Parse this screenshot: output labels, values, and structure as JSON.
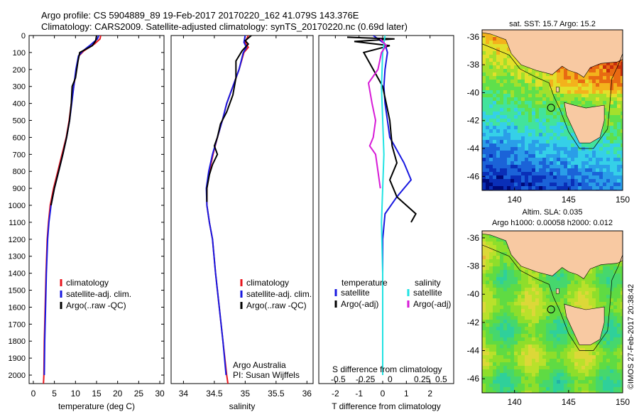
{
  "header": {
    "line1": "Argo profile: CS 5904889_89 19-Feb-2017 20170220_162 41.079S 143.376E",
    "line2": "Climatology: CARS2009. Satellite-adjusted climatology: synTS_20170220.nc (0.69d later)"
  },
  "colors": {
    "climatology": "#e8141c",
    "satellite": "#1818e0",
    "argo": "#000000",
    "sal_satellite": "#21e3e3",
    "sal_argo": "#d71bd7"
  },
  "chart_data": [
    {
      "type": "line",
      "xlabel": "temperature (deg C)",
      "xlim": [
        -1,
        31
      ],
      "ylim": [
        0,
        2050
      ],
      "y_reversed": true,
      "xticks": [
        0,
        5,
        10,
        15,
        20,
        25,
        30
      ],
      "yticks": [
        0,
        100,
        200,
        300,
        400,
        500,
        600,
        700,
        800,
        900,
        1000,
        1100,
        1200,
        1300,
        1400,
        1500,
        1600,
        1700,
        1800,
        1900,
        2000
      ],
      "legend": [
        "climatology",
        "satellite-adj. clim.",
        "Argo(..raw -QC)"
      ],
      "series": [
        {
          "name": "climatology",
          "color": "#e8141c",
          "points": [
            [
              16.0,
              0
            ],
            [
              15.8,
              20
            ],
            [
              14.5,
              50
            ],
            [
              12.0,
              90
            ],
            [
              10.8,
              120
            ],
            [
              10.2,
              200
            ],
            [
              9.6,
              300
            ],
            [
              9.0,
              400
            ],
            [
              8.5,
              500
            ],
            [
              7.8,
              600
            ],
            [
              6.8,
              700
            ],
            [
              5.8,
              800
            ],
            [
              4.8,
              900
            ],
            [
              4.0,
              1000
            ],
            [
              3.6,
              1100
            ],
            [
              3.3,
              1200
            ],
            [
              3.0,
              1400
            ],
            [
              2.8,
              1600
            ],
            [
              2.6,
              1800
            ],
            [
              2.5,
              2000
            ],
            [
              2.4,
              2050
            ]
          ]
        },
        {
          "name": "satellite-adj. clim.",
          "color": "#1818e0",
          "points": [
            [
              15.5,
              0
            ],
            [
              15.2,
              20
            ],
            [
              13.8,
              50
            ],
            [
              11.8,
              90
            ],
            [
              10.7,
              120
            ],
            [
              10.1,
              200
            ],
            [
              9.6,
              300
            ],
            [
              9.1,
              400
            ],
            [
              8.6,
              500
            ],
            [
              7.9,
              600
            ],
            [
              7.0,
              700
            ],
            [
              6.0,
              800
            ],
            [
              5.0,
              900
            ],
            [
              4.2,
              1000
            ],
            [
              3.7,
              1100
            ],
            [
              3.4,
              1200
            ],
            [
              3.1,
              1400
            ],
            [
              2.9,
              1600
            ],
            [
              2.7,
              1800
            ],
            [
              2.6,
              2000
            ]
          ]
        },
        {
          "name": "Argo(..raw -QC)",
          "color": "#000000",
          "points": [
            [
              15.0,
              0
            ],
            [
              14.8,
              30
            ],
            [
              14.0,
              60
            ],
            [
              12.5,
              80
            ],
            [
              11.0,
              100
            ],
            [
              10.6,
              150
            ],
            [
              10.0,
              250
            ],
            [
              9.2,
              300
            ],
            [
              9.0,
              400
            ],
            [
              8.6,
              500
            ],
            [
              7.9,
              600
            ],
            [
              7.0,
              700
            ],
            [
              6.0,
              800
            ],
            [
              5.0,
              900
            ],
            [
              4.2,
              1000
            ]
          ]
        }
      ]
    },
    {
      "type": "line",
      "xlabel": "salinity",
      "xlim": [
        33.8,
        36.1
      ],
      "ylim": [
        0,
        2050
      ],
      "y_reversed": true,
      "xticks": [
        34,
        34.5,
        35,
        35.5,
        36
      ],
      "legend": [
        "climatology",
        "satellite-adj. clim.",
        "Argo(..raw -QC)"
      ],
      "annotation": [
        "Argo Australia",
        "PI: Susan Wijffels"
      ],
      "series": [
        {
          "name": "climatology",
          "color": "#e8141c",
          "points": [
            [
              35.05,
              0
            ],
            [
              35.0,
              40
            ],
            [
              35.05,
              70
            ],
            [
              34.98,
              100
            ],
            [
              34.9,
              200
            ],
            [
              34.8,
              300
            ],
            [
              34.7,
              400
            ],
            [
              34.63,
              500
            ],
            [
              34.55,
              600
            ],
            [
              34.48,
              700
            ],
            [
              34.42,
              800
            ],
            [
              34.38,
              900
            ],
            [
              34.38,
              1000
            ],
            [
              34.42,
              1100
            ],
            [
              34.47,
              1200
            ],
            [
              34.52,
              1400
            ],
            [
              34.58,
              1600
            ],
            [
              34.64,
              1800
            ],
            [
              34.7,
              2000
            ],
            [
              34.72,
              2050
            ]
          ]
        },
        {
          "name": "satellite-adj. clim.",
          "color": "#1818e0",
          "points": [
            [
              35.0,
              0
            ],
            [
              34.98,
              40
            ],
            [
              35.02,
              70
            ],
            [
              34.97,
              100
            ],
            [
              34.9,
              200
            ],
            [
              34.8,
              300
            ],
            [
              34.7,
              400
            ],
            [
              34.63,
              500
            ],
            [
              34.55,
              600
            ],
            [
              34.47,
              700
            ],
            [
              34.41,
              800
            ],
            [
              34.37,
              900
            ],
            [
              34.38,
              1000
            ],
            [
              34.42,
              1100
            ],
            [
              34.47,
              1200
            ],
            [
              34.52,
              1400
            ],
            [
              34.58,
              1600
            ],
            [
              34.64,
              1800
            ],
            [
              34.69,
              2000
            ]
          ]
        },
        {
          "name": "Argo(..raw -QC)",
          "color": "#000000",
          "points": [
            [
              35.1,
              0
            ],
            [
              35.0,
              30
            ],
            [
              35.05,
              50
            ],
            [
              34.95,
              90
            ],
            [
              34.85,
              150
            ],
            [
              34.85,
              250
            ],
            [
              34.8,
              350
            ],
            [
              34.7,
              450
            ],
            [
              34.6,
              520
            ],
            [
              34.55,
              600
            ],
            [
              34.5,
              650
            ],
            [
              34.55,
              700
            ],
            [
              34.47,
              760
            ],
            [
              34.42,
              820
            ],
            [
              34.38,
              900
            ],
            [
              34.38,
              980
            ]
          ]
        }
      ]
    },
    {
      "type": "line",
      "xlabel": "T difference from climatology",
      "xlabel2": "S difference from climatology",
      "xlim": [
        -2.7,
        3.0
      ],
      "ylim": [
        0,
        2050
      ],
      "y_reversed": true,
      "xticks": [
        -2,
        -1,
        0,
        1,
        2
      ],
      "xticks_s": [
        "-0.5",
        "-0.25",
        "0",
        "0.25",
        "0.5"
      ],
      "legend_t": {
        "title": "temperature",
        "items": [
          "satellite",
          "Argo(-adj)"
        ]
      },
      "legend_s": {
        "title": "salinity",
        "items": [
          "satellite",
          "Argo(-adj)"
        ]
      },
      "series": [
        {
          "name": "temperature satellite",
          "color": "#1818e0",
          "points": [
            [
              -0.4,
              0
            ],
            [
              0.1,
              50
            ],
            [
              0.2,
              100
            ],
            [
              0.1,
              200
            ],
            [
              0.05,
              300
            ],
            [
              0.1,
              400
            ],
            [
              0.2,
              500
            ],
            [
              0.3,
              600
            ],
            [
              0.5,
              650
            ],
            [
              0.9,
              750
            ],
            [
              1.2,
              850
            ],
            [
              0.6,
              950
            ],
            [
              0.1,
              1050
            ],
            [
              0.0,
              1200
            ],
            [
              0.0,
              1500
            ],
            [
              0.0,
              2000
            ]
          ]
        },
        {
          "name": "temperature Argo(-adj)",
          "color": "#000000",
          "points": [
            [
              -1.5,
              10
            ],
            [
              0.5,
              20
            ],
            [
              -1.2,
              35
            ],
            [
              0.3,
              60
            ],
            [
              -0.8,
              100
            ],
            [
              -0.6,
              150
            ],
            [
              0.0,
              300
            ],
            [
              0.3,
              500
            ],
            [
              0.4,
              650
            ],
            [
              0.6,
              750
            ],
            [
              0.3,
              850
            ],
            [
              0.6,
              950
            ],
            [
              1.4,
              1050
            ],
            [
              1.2,
              1100
            ]
          ]
        },
        {
          "name": "salinity satellite",
          "color": "#21e3e3",
          "points": [
            [
              0.1,
              0
            ],
            [
              0.0,
              100
            ],
            [
              -0.05,
              300
            ],
            [
              0.0,
              500
            ],
            [
              0.05,
              700
            ],
            [
              0.0,
              900
            ],
            [
              -0.05,
              1100
            ],
            [
              0.0,
              1400
            ],
            [
              0.0,
              2000
            ]
          ]
        },
        {
          "name": "salinity Argo(-adj)",
          "color": "#d71bd7",
          "points": [
            [
              -0.1,
              20
            ],
            [
              0.15,
              60
            ],
            [
              -0.05,
              100
            ],
            [
              -0.2,
              200
            ],
            [
              -0.6,
              280
            ],
            [
              -0.45,
              400
            ],
            [
              -0.3,
              500
            ],
            [
              -0.4,
              600
            ],
            [
              -0.55,
              650
            ],
            [
              -0.3,
              700
            ],
            [
              -0.1,
              900
            ]
          ]
        }
      ]
    },
    {
      "type": "heatmap",
      "title": "sat. SST: 15.7 Argo: 15.2",
      "xlim": [
        137,
        150
      ],
      "ylim": [
        -47,
        -35.5
      ],
      "xticks": [
        140,
        145,
        150
      ],
      "yticks": [
        -36,
        -38,
        -40,
        -42,
        -44,
        -46
      ],
      "marker": [
        143.376,
        -41.079
      ]
    },
    {
      "type": "heatmap",
      "title": "Altim. SLA: 0.035",
      "subtitle": "Argo h1000: 0.00058 h2000: 0.012",
      "xlim": [
        137,
        150
      ],
      "ylim": [
        -47,
        -35.5
      ],
      "xticks": [
        140,
        145,
        150
      ],
      "yticks": [
        -36,
        -38,
        -40,
        -42,
        -44,
        -46
      ],
      "marker": [
        143.376,
        -41.079
      ]
    }
  ],
  "side_label": "©IMOS 27-Feb-2017 20:38:42"
}
